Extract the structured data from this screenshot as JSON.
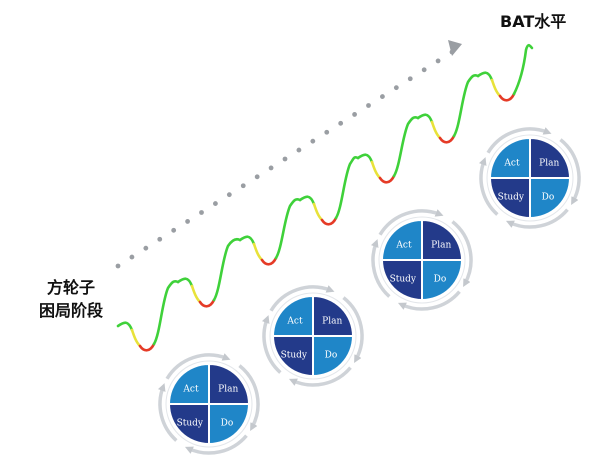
{
  "labels": {
    "target_level": "BAT水平",
    "start_line1": "方轮子",
    "start_line2": "困局阶段"
  },
  "pdca": {
    "act": "Act",
    "plan": "Plan",
    "study": "Study",
    "do": "Do"
  },
  "colors": {
    "quad_light": "#1f86c8",
    "quad_dark": "#233a8a",
    "ring": "#cfd3d8",
    "arrow_dots": "#9a9ea3",
    "wave_up": "#3fd13a",
    "wave_down": "#e53b27",
    "wave_turn": "#e8e23a"
  }
}
